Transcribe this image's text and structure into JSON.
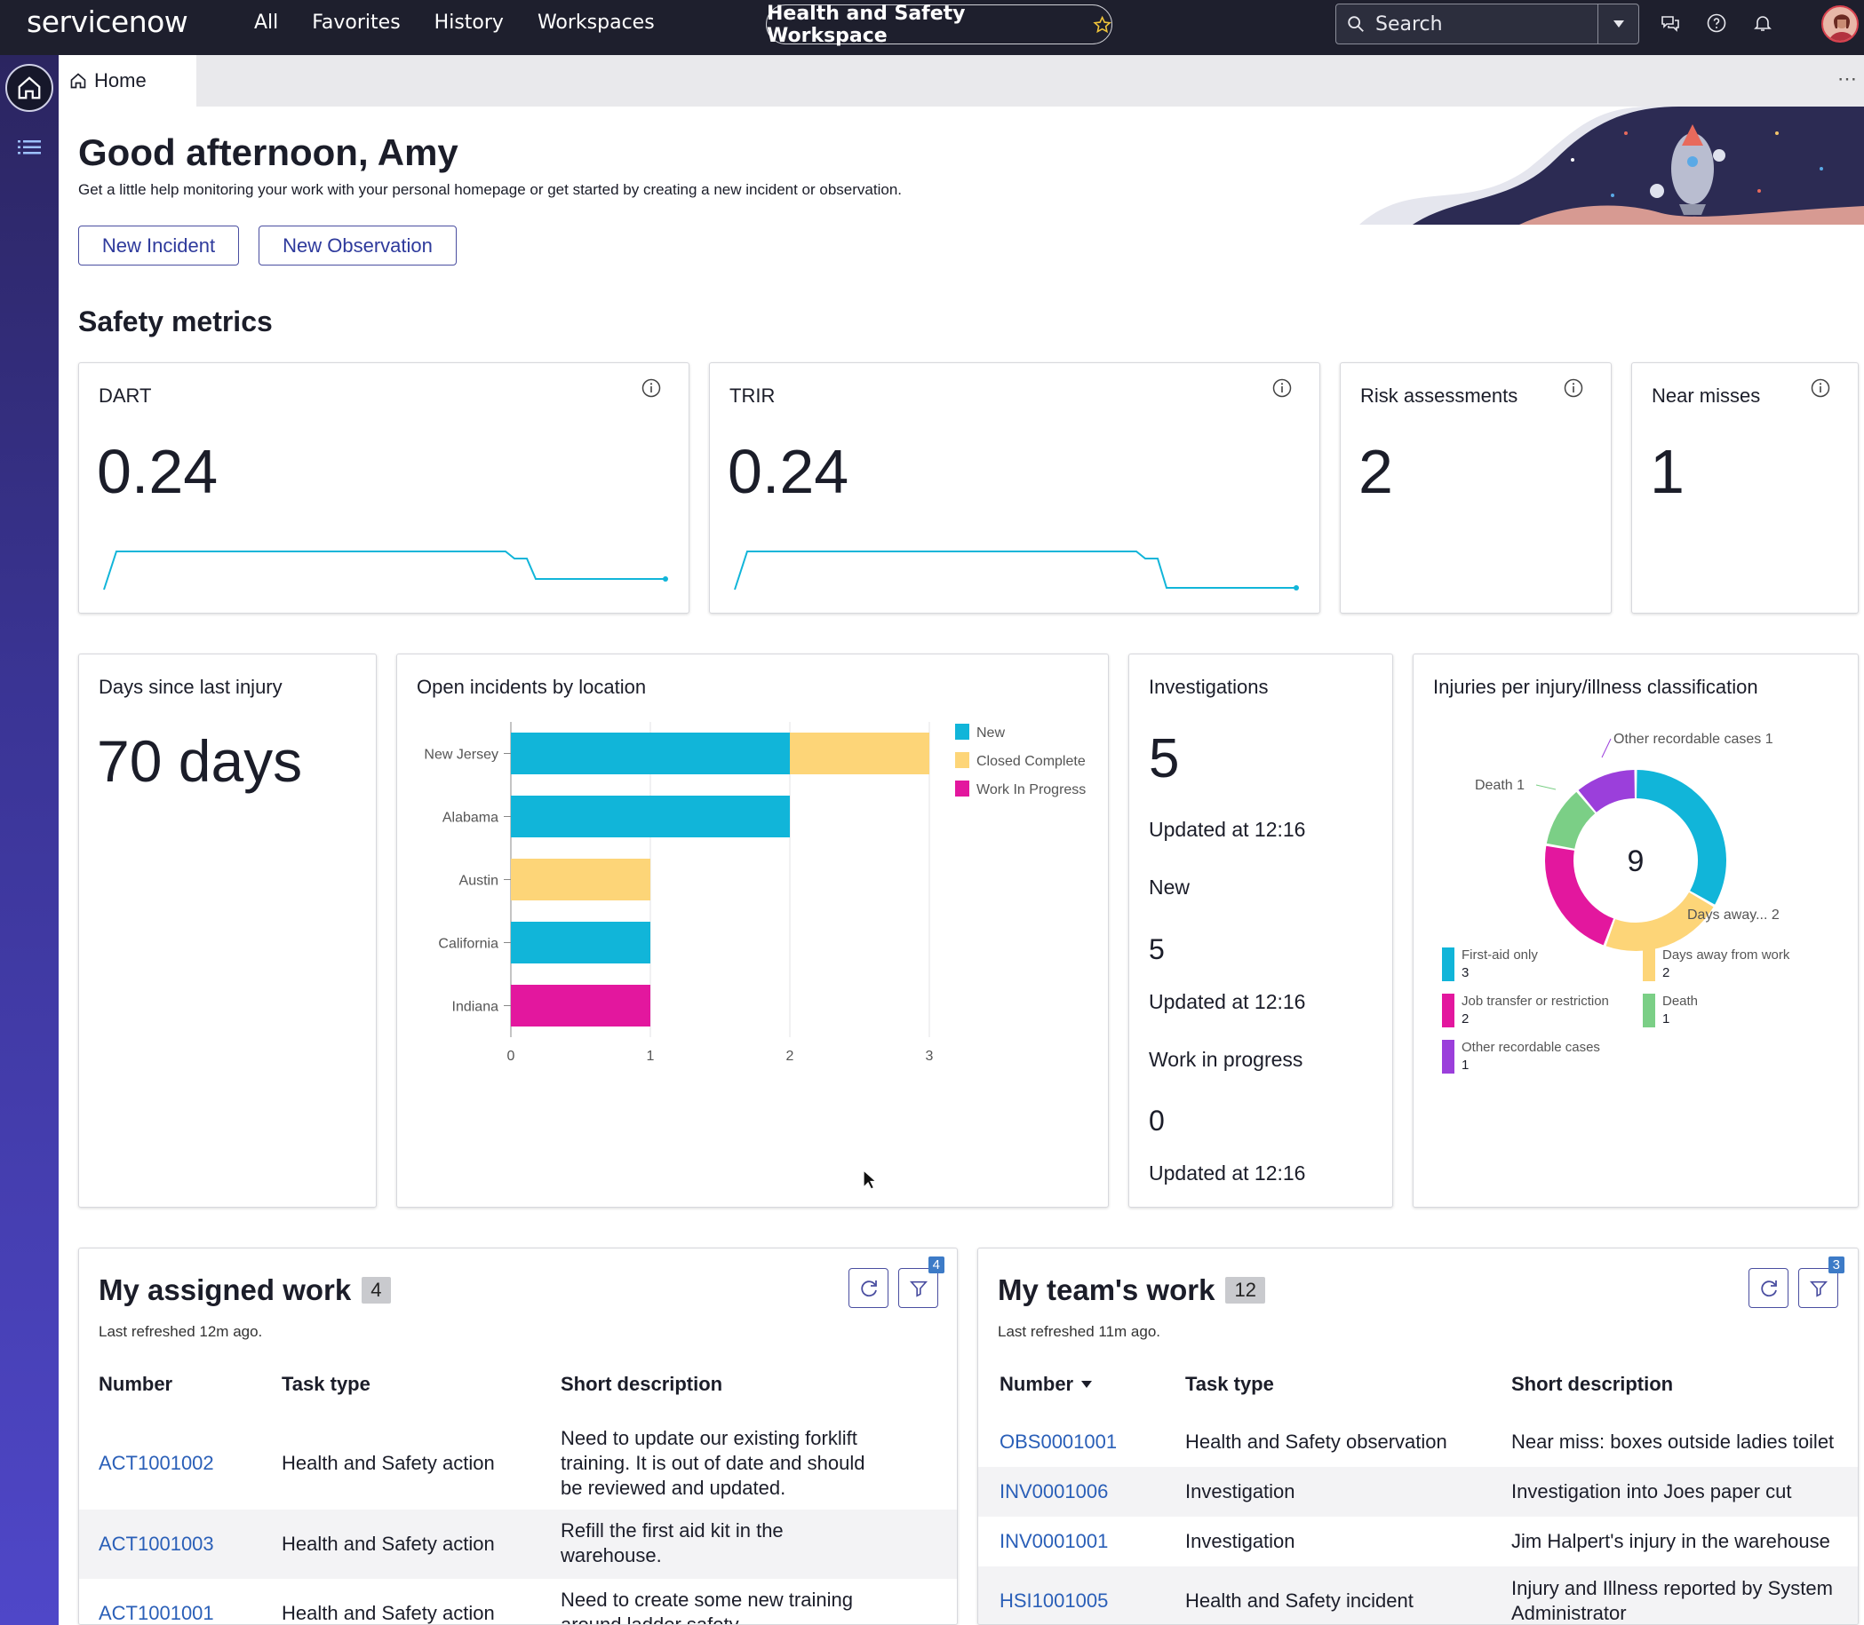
{
  "nav": {
    "logo": "servicenow",
    "menu": [
      "All",
      "Favorites",
      "History",
      "Workspaces"
    ],
    "workspace_pill": "Health and Safety Workspace",
    "search_placeholder": "Search"
  },
  "tab": {
    "label": "Home"
  },
  "greeting": {
    "title": "Good afternoon, Amy",
    "subtitle": "Get a little help monitoring your work with your personal homepage or get started by creating a new incident or observation.",
    "btn_new_incident": "New Incident",
    "btn_new_observation": "New Observation"
  },
  "safety_metrics": {
    "title": "Safety metrics",
    "dart": {
      "label": "DART",
      "value": "0.24"
    },
    "trir": {
      "label": "TRIR",
      "value": "0.24"
    },
    "risk": {
      "label": "Risk assessments",
      "value": "2"
    },
    "near": {
      "label": "Near misses",
      "value": "1"
    }
  },
  "days_since": {
    "label": "Days since last injury",
    "value": "70 days"
  },
  "investigations": {
    "label": "Investigations",
    "total": "5",
    "updated1": "Updated at 12:16",
    "new_label": "New",
    "new_value": "5",
    "updated2": "Updated at 12:16",
    "wip_label": "Work in progress",
    "wip_value": "0",
    "updated3": "Updated at 12:16"
  },
  "chart_data": [
    {
      "type": "bar",
      "orientation": "horizontal",
      "stacked": true,
      "title": "Open incidents by location",
      "categories": [
        "New Jersey",
        "Alabama",
        "Austin",
        "California",
        "Indiana"
      ],
      "series": [
        {
          "name": "New",
          "color": "#11b5d9",
          "values": [
            2,
            2,
            0,
            1,
            0
          ]
        },
        {
          "name": "Closed Complete",
          "color": "#fdd578",
          "values": [
            1,
            0,
            1,
            0,
            0
          ]
        },
        {
          "name": "Work In Progress",
          "color": "#e3179e",
          "values": [
            0,
            0,
            0,
            0,
            1
          ]
        }
      ],
      "xlim": [
        0,
        3
      ],
      "xticks": [
        "0",
        "1",
        "2",
        "3"
      ],
      "legend": "top-right",
      "grid": true
    },
    {
      "type": "pie",
      "donut": true,
      "title": "Injuries per injury/illness classification",
      "center_label": "9",
      "slices": [
        {
          "name": "First-aid only",
          "value": 3,
          "color": "#11b5d9"
        },
        {
          "name": "Days away from work",
          "value": 2,
          "color": "#fdd578"
        },
        {
          "name": "Job transfer or restriction",
          "value": 2,
          "color": "#e3179e"
        },
        {
          "name": "Death",
          "value": 1,
          "color": "#7bcf86"
        },
        {
          "name": "Other recordable cases",
          "value": 1,
          "color": "#9b3fdb"
        }
      ],
      "callouts": [
        {
          "text": "Other recordable cases",
          "value": "1"
        },
        {
          "text": "Death",
          "value": "1"
        },
        {
          "text": "Days away...",
          "value": "2"
        }
      ],
      "legend": "bottom"
    }
  ],
  "assigned_work": {
    "title": "My assigned work",
    "count": "4",
    "refreshed": "Last refreshed 12m ago.",
    "filter_count": "4",
    "columns": [
      "Number",
      "Task type",
      "Short description"
    ],
    "rows": [
      {
        "number": "ACT1001002",
        "type": "Health and Safety action",
        "desc": [
          "Need to update our existing forklift",
          "training. It is out of date and should",
          "be reviewed and updated."
        ]
      },
      {
        "number": "ACT1001003",
        "type": "Health and Safety action",
        "desc": [
          "Refill the first aid kit in the",
          "warehouse."
        ]
      },
      {
        "number": "ACT1001001",
        "type": "Health and Safety action",
        "desc": [
          "Need to create some new training",
          "around ladder safety."
        ]
      }
    ]
  },
  "team_work": {
    "title": "My team's work",
    "count": "12",
    "refreshed": "Last refreshed 11m ago.",
    "filter_count": "3",
    "columns": [
      "Number",
      "Task type",
      "Short description"
    ],
    "rows": [
      {
        "number": "OBS0001001",
        "type": "Health and Safety observation",
        "desc": [
          "Near miss: boxes outside ladies toilet"
        ]
      },
      {
        "number": "INV0001006",
        "type": "Investigation",
        "desc": [
          "Investigation into Joes paper cut"
        ]
      },
      {
        "number": "INV0001001",
        "type": "Investigation",
        "desc": [
          "Jim Halpert's injury in the warehouse"
        ]
      },
      {
        "number": "HSI1001005",
        "type": "Health and Safety incident",
        "desc": [
          "Injury and Illness reported by System",
          "Administrator"
        ]
      }
    ]
  }
}
